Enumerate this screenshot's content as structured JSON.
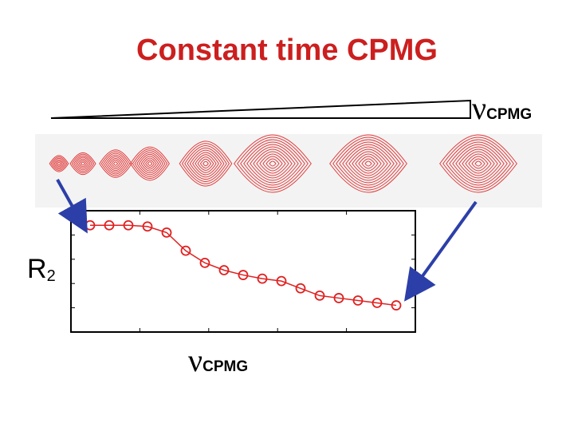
{
  "title": "Constant time CPMG",
  "top_axis": {
    "symbol": "ν",
    "subscript": "CPMG"
  },
  "y_axis": {
    "symbol": "R",
    "subscript": "2"
  },
  "x_axis": {
    "symbol": "ν",
    "subscript": "CPMG"
  },
  "colors": {
    "title": "#cc1f1f",
    "peaks": "#e23a3a",
    "curve": "#e02020",
    "arrows": "#2c3fa8",
    "strip_bg": "#f3f3f3"
  },
  "peaks": {
    "count": 8,
    "relative_sizes": [
      0.28,
      0.38,
      0.48,
      0.58,
      0.78,
      1.0,
      1.0,
      1.0
    ]
  },
  "chart_data": {
    "type": "line",
    "title": "",
    "xlabel": "νCPMG",
    "ylabel": "R2",
    "series": [
      {
        "x": [
          1,
          2,
          3,
          4,
          5,
          6,
          7,
          8,
          9,
          10,
          11,
          12,
          13,
          14,
          15,
          16,
          17
        ],
        "values": [
          0.88,
          0.88,
          0.88,
          0.87,
          0.82,
          0.67,
          0.57,
          0.51,
          0.47,
          0.44,
          0.42,
          0.36,
          0.3,
          0.28,
          0.26,
          0.24,
          0.22
        ]
      }
    ],
    "xlim": [
      0,
      18
    ],
    "ylim": [
      0,
      1
    ],
    "grid": false
  }
}
